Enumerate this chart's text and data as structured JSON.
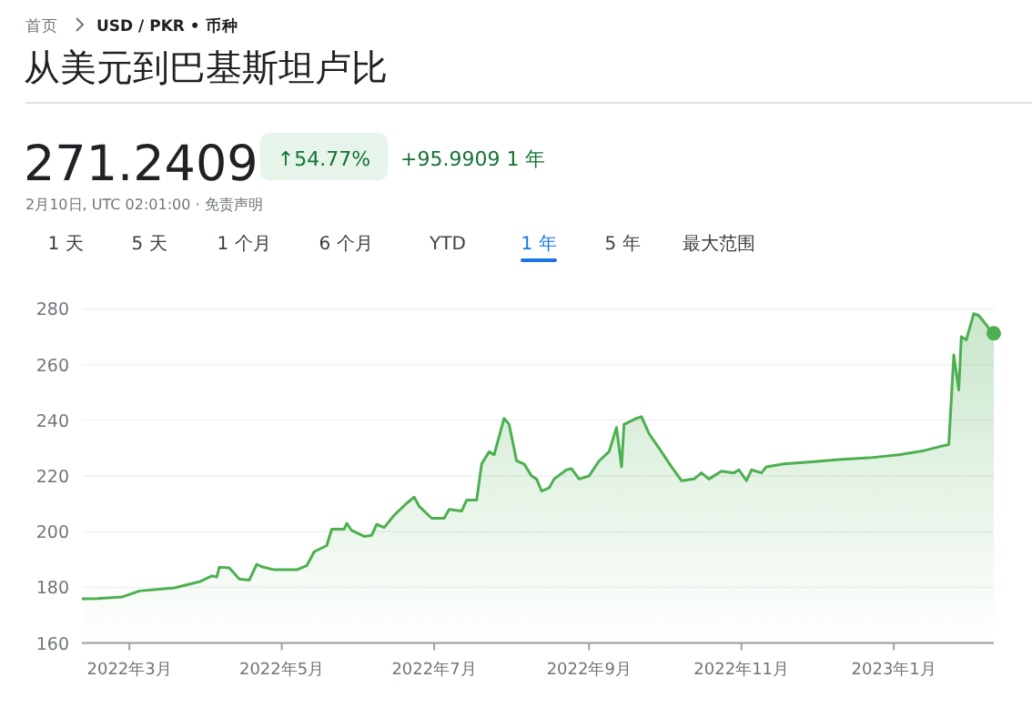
{
  "chart_data": {
    "type": "area",
    "title": "从美元到巴基斯坦卢比",
    "annotations": [
      "首页",
      "USD / PKR • 币种",
      "271.2409",
      "↑54.77%",
      "+95.9909 1 年",
      "2月10日, UTC 02:01:00 · 免责声明",
      "1 天",
      "5 天",
      "1 个月",
      "6 个月",
      "YTD",
      "1 年",
      "5 年",
      "最大范围"
    ],
    "xlim": [
      "2022-02-10",
      "2023-02-10"
    ],
    "xticks": [
      {
        "value": "2022-03-01",
        "label": "2022年3月"
      },
      {
        "value": "2022-05-01",
        "label": "2022年5月"
      },
      {
        "value": "2022-07-01",
        "label": "2022年7月"
      },
      {
        "value": "2022-09-01",
        "label": "2022年9月"
      },
      {
        "value": "2022-11-01",
        "label": "2022年11月"
      },
      {
        "value": "2023-01-01",
        "label": "2023年1月"
      }
    ],
    "ylim": [
      160,
      280
    ],
    "yticks": [
      160,
      180,
      200,
      220,
      240,
      260,
      280
    ],
    "grid": "y",
    "series": [
      {
        "color": "#4caf50",
        "x": [
          "2022-02-10",
          "2022-02-16",
          "2022-02-26",
          "2022-03-05",
          "2022-03-19",
          "2022-03-29",
          "2022-04-03",
          "2022-04-05",
          "2022-04-06",
          "2022-04-10",
          "2022-04-14",
          "2022-04-18",
          "2022-04-21",
          "2022-04-23",
          "2022-04-28",
          "2022-05-07",
          "2022-05-11",
          "2022-05-14",
          "2022-05-19",
          "2022-05-21",
          "2022-05-26",
          "2022-05-27",
          "2022-05-29",
          "2022-06-03",
          "2022-06-06",
          "2022-06-08",
          "2022-06-11",
          "2022-06-15",
          "2022-06-20",
          "2022-06-23",
          "2022-06-25",
          "2022-06-30",
          "2022-07-05",
          "2022-07-07",
          "2022-07-12",
          "2022-07-14",
          "2022-07-18",
          "2022-07-20",
          "2022-07-23",
          "2022-07-25",
          "2022-07-29",
          "2022-07-31",
          "2022-08-03",
          "2022-08-06",
          "2022-08-09",
          "2022-08-11",
          "2022-08-13",
          "2022-08-16",
          "2022-08-18",
          "2022-08-23",
          "2022-08-25",
          "2022-08-28",
          "2022-09-01",
          "2022-09-05",
          "2022-09-09",
          "2022-09-12",
          "2022-09-14",
          "2022-09-15",
          "2022-09-20",
          "2022-09-22",
          "2022-09-25",
          "2022-09-30",
          "2022-10-04",
          "2022-10-08",
          "2022-10-13",
          "2022-10-16",
          "2022-10-19",
          "2022-10-24",
          "2022-10-29",
          "2022-10-31",
          "2022-11-03",
          "2022-11-05",
          "2022-11-09",
          "2022-11-11",
          "2022-11-18",
          "2022-11-28",
          "2022-12-10",
          "2022-12-22",
          "2023-01-03",
          "2023-01-13",
          "2023-01-21",
          "2023-01-23",
          "2023-01-25",
          "2023-01-27",
          "2023-01-28",
          "2023-01-30",
          "2023-02-02",
          "2023-02-04",
          "2023-02-07",
          "2023-02-09",
          "2023-02-10"
        ],
        "values": [
          175.9,
          176,
          176.5,
          178.7,
          179.8,
          182,
          184.1,
          183.7,
          187.2,
          187,
          183,
          182.6,
          188.3,
          187.4,
          186.3,
          186.3,
          187.8,
          192.8,
          195,
          200.9,
          200.9,
          203,
          200.4,
          198.3,
          198.7,
          202.6,
          201.5,
          205.9,
          210.2,
          212.4,
          209.1,
          204.8,
          204.8,
          208,
          207.4,
          211.3,
          211.3,
          224.3,
          228.7,
          227.6,
          240.7,
          238.5,
          225.4,
          224.3,
          220,
          218.9,
          214.6,
          215.7,
          218.9,
          222.2,
          222.6,
          218.9,
          220,
          225.4,
          228.7,
          237.4,
          223.3,
          238.5,
          240.7,
          241.3,
          235.2,
          228.7,
          223.3,
          218.3,
          218.9,
          221.1,
          218.9,
          221.7,
          221.1,
          222.2,
          218.3,
          222.2,
          221.1,
          223.3,
          224.3,
          225,
          225.9,
          226.5,
          227.6,
          229.1,
          230.9,
          231.3,
          263.5,
          250.9,
          270,
          268.9,
          278.3,
          277.6,
          274.3,
          271.7,
          271.2
        ]
      },
      {
        "type": "scatter",
        "marker": "circle",
        "color": "#4caf50",
        "x": [
          "2023-02-10"
        ],
        "values": [
          271.2
        ]
      }
    ]
  }
}
